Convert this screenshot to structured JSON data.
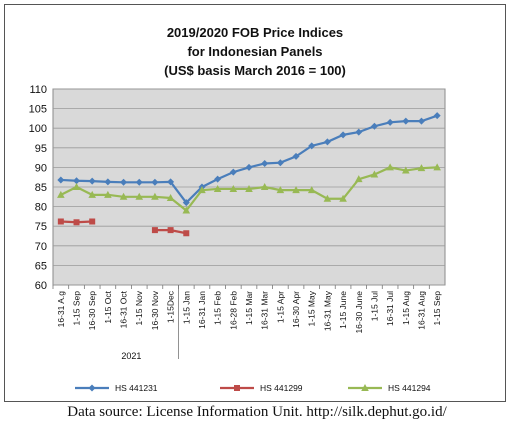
{
  "chart_data": {
    "type": "line",
    "title": [
      "2019/2020 FOB Price Indices",
      "for Indonesian Panels",
      "(US$ basis March 2016 = 100)"
    ],
    "categories": [
      "16-31 A.g",
      "1-15 Sep",
      "16-30 Sep",
      "1-15 Oct",
      "16-31 Oct",
      "1-15 Nov",
      "16-30 Nov",
      "1-15Dec",
      "1-15 Jan",
      "16-31 Jan",
      "1-15 Feb",
      "16-28 Feb",
      "1-15 Mar",
      "16-31 Mar",
      "1-15 Apr",
      "16-30 Apr",
      "1-15 May",
      "16-31 May",
      "1-15 June",
      "16-30 June",
      "1-15 Jul",
      "16-31 Jul",
      "1-15 Aug",
      "16-31 Aug",
      "1-15 Sep"
    ],
    "year_group": {
      "label": "2021",
      "from": "1-15 Jan",
      "to": "1-15 Sep"
    },
    "ylim": [
      60,
      110
    ],
    "yticks": [
      60,
      65,
      70,
      75,
      80,
      85,
      90,
      95,
      100,
      105,
      110
    ],
    "grid": true,
    "legend": "bottom",
    "series": [
      {
        "name": "HS 441231",
        "color": "#4a7ebb",
        "marker": "diamond",
        "values": [
          86.8,
          86.6,
          86.5,
          86.3,
          86.2,
          86.2,
          86.2,
          86.3,
          81.0,
          85.0,
          87.0,
          88.8,
          90.0,
          91.0,
          91.2,
          92.8,
          95.5,
          96.5,
          98.3,
          99.0,
          100.5,
          101.5,
          101.8,
          101.8,
          103.2
        ]
      },
      {
        "name": "HS 441299",
        "color": "#be4b48",
        "marker": "square",
        "values": [
          76.2,
          76.0,
          76.2,
          null,
          null,
          null,
          74.0,
          74.0,
          73.2,
          null,
          null,
          null,
          null,
          null,
          null,
          null,
          null,
          null,
          null,
          null,
          null,
          null,
          null,
          null,
          null
        ]
      },
      {
        "name": "HS 441294",
        "color": "#98b954",
        "marker": "triangle",
        "values": [
          83.0,
          85.0,
          83.0,
          83.0,
          82.5,
          82.5,
          82.5,
          82.2,
          79.0,
          84.2,
          84.5,
          84.5,
          84.5,
          85.0,
          84.2,
          84.2,
          84.2,
          82.0,
          82.0,
          87.0,
          88.2,
          90.0,
          89.2,
          89.8,
          90.0
        ]
      }
    ]
  },
  "source_text": "Data source: License Information Unit. http://silk.dephut.go.id/"
}
